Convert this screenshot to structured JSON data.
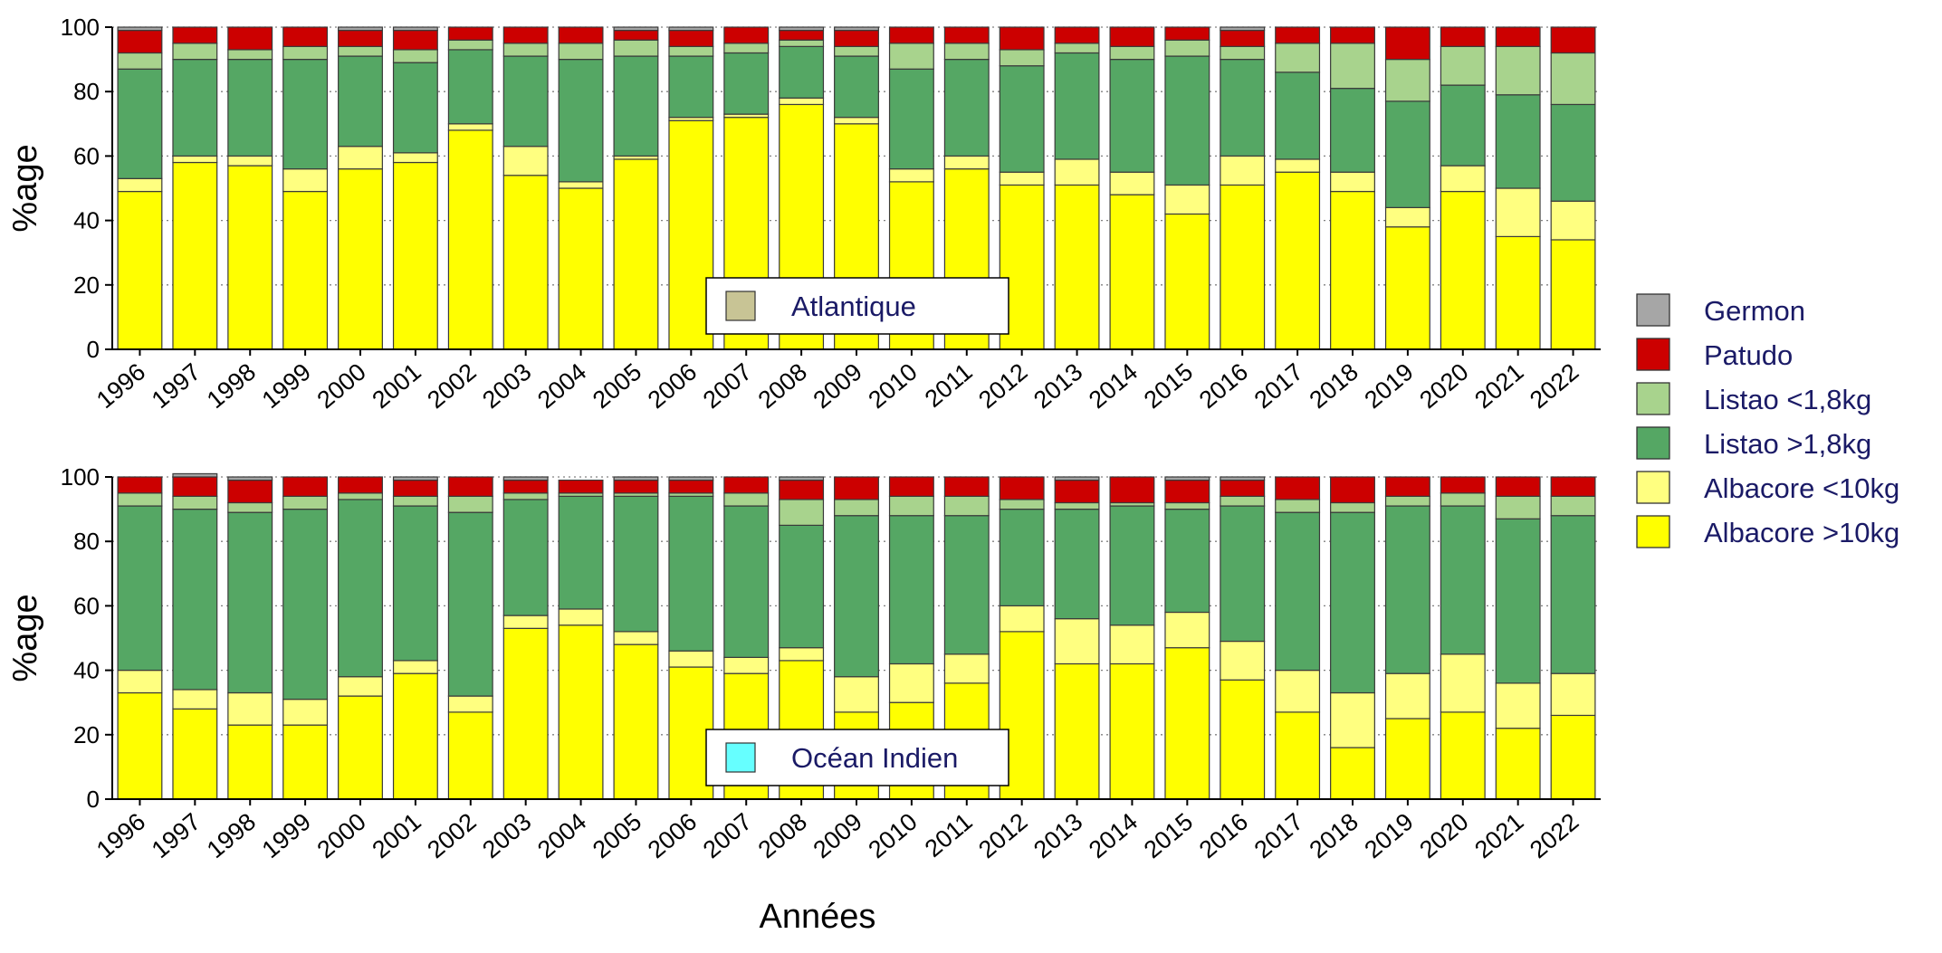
{
  "chart_data": [
    {
      "type": "bar",
      "stacked": true,
      "panel_label": "Atlantique",
      "panel_label_swatch_color": "#c8c495",
      "ylabel": "%age",
      "xlabel": "",
      "ylim": [
        0,
        100
      ],
      "y_ticks": [
        0,
        20,
        40,
        60,
        80,
        100
      ],
      "grid": true,
      "categories": [
        "1996",
        "1997",
        "1998",
        "1999",
        "2000",
        "2001",
        "2002",
        "2003",
        "2004",
        "2005",
        "2006",
        "2007",
        "2008",
        "2009",
        "2010",
        "2011",
        "2012",
        "2013",
        "2014",
        "2015",
        "2016",
        "2017",
        "2018",
        "2019",
        "2020",
        "2021",
        "2022"
      ],
      "series": [
        {
          "name": "Albacore >10kg",
          "values": [
            49,
            58,
            57,
            49,
            56,
            58,
            68,
            54,
            50,
            59,
            71,
            72,
            76,
            70,
            52,
            56,
            51,
            51,
            48,
            42,
            51,
            55,
            49,
            38,
            49,
            35,
            34
          ]
        },
        {
          "name": "Albacore <10kg",
          "values": [
            4,
            2,
            3,
            7,
            7,
            3,
            2,
            9,
            2,
            1,
            1,
            1,
            2,
            2,
            4,
            4,
            4,
            8,
            7,
            9,
            9,
            4,
            6,
            6,
            8,
            15,
            12
          ]
        },
        {
          "name": "Listao >1,8kg",
          "values": [
            34,
            30,
            30,
            34,
            28,
            28,
            23,
            28,
            38,
            31,
            19,
            19,
            16,
            19,
            31,
            30,
            33,
            33,
            35,
            40,
            30,
            27,
            26,
            33,
            25,
            29,
            30
          ]
        },
        {
          "name": "Listao <1,8kg",
          "values": [
            5,
            5,
            3,
            4,
            3,
            4,
            3,
            4,
            5,
            5,
            3,
            3,
            2,
            3,
            8,
            5,
            5,
            3,
            4,
            5,
            4,
            9,
            14,
            13,
            12,
            15,
            16
          ]
        },
        {
          "name": "Patudo",
          "values": [
            7,
            5,
            7,
            6,
            5,
            6,
            4,
            5,
            5,
            3,
            5,
            5,
            3,
            5,
            5,
            5,
            7,
            5,
            6,
            4,
            5,
            5,
            5,
            10,
            6,
            6,
            8
          ]
        },
        {
          "name": "Germon",
          "values": [
            1,
            0,
            0,
            0,
            1,
            1,
            0,
            0,
            0,
            1,
            1,
            0,
            1,
            1,
            0,
            0,
            0,
            0,
            0,
            0,
            1,
            0,
            0,
            0,
            0,
            0,
            0
          ]
        }
      ]
    },
    {
      "type": "bar",
      "stacked": true,
      "panel_label": "Océan Indien",
      "panel_label_swatch_color": "#66ffff",
      "ylabel": "%age",
      "xlabel": "Années",
      "ylim": [
        0,
        100
      ],
      "y_ticks": [
        0,
        20,
        40,
        60,
        80,
        100
      ],
      "grid": true,
      "categories": [
        "1996",
        "1997",
        "1998",
        "1999",
        "2000",
        "2001",
        "2002",
        "2003",
        "2004",
        "2005",
        "2006",
        "2007",
        "2008",
        "2009",
        "2010",
        "2011",
        "2012",
        "2013",
        "2014",
        "2015",
        "2016",
        "2017",
        "2018",
        "2019",
        "2020",
        "2021",
        "2022"
      ],
      "series": [
        {
          "name": "Albacore >10kg",
          "values": [
            33,
            28,
            23,
            23,
            32,
            39,
            27,
            53,
            54,
            48,
            41,
            39,
            43,
            27,
            30,
            36,
            52,
            42,
            42,
            47,
            37,
            27,
            16,
            25,
            27,
            22,
            26
          ]
        },
        {
          "name": "Albacore <10kg",
          "values": [
            7,
            6,
            10,
            8,
            6,
            4,
            5,
            4,
            5,
            4,
            5,
            5,
            4,
            11,
            12,
            9,
            8,
            14,
            12,
            11,
            12,
            13,
            17,
            14,
            18,
            14,
            13
          ]
        },
        {
          "name": "Listao >1,8kg",
          "values": [
            51,
            56,
            56,
            59,
            55,
            48,
            57,
            36,
            35,
            42,
            48,
            47,
            38,
            50,
            46,
            43,
            30,
            34,
            37,
            32,
            42,
            49,
            56,
            52,
            46,
            51,
            49
          ]
        },
        {
          "name": "Listao <1,8kg",
          "values": [
            4,
            4,
            3,
            4,
            2,
            3,
            5,
            2,
            1,
            1,
            1,
            4,
            8,
            5,
            6,
            6,
            3,
            2,
            1,
            2,
            3,
            4,
            3,
            3,
            4,
            7,
            6
          ]
        },
        {
          "name": "Patudo",
          "values": [
            5,
            6,
            7,
            6,
            5,
            5,
            6,
            4,
            4,
            4,
            4,
            5,
            6,
            7,
            6,
            6,
            7,
            7,
            8,
            7,
            5,
            7,
            8,
            6,
            5,
            6,
            6
          ]
        },
        {
          "name": "Germon",
          "values": [
            0,
            1,
            1,
            0,
            0,
            1,
            0,
            1,
            0,
            1,
            1,
            0,
            1,
            0,
            0,
            0,
            0,
            1,
            0,
            1,
            1,
            0,
            0,
            0,
            0,
            0,
            0
          ]
        }
      ]
    }
  ],
  "legend": {
    "placement": "right",
    "items": [
      {
        "name": "Germon",
        "color": "#a6a6a6"
      },
      {
        "name": "Patudo",
        "color": "#cc0000"
      },
      {
        "name": "Listao <1,8kg",
        "color": "#a8d38d"
      },
      {
        "name": "Listao >1,8kg",
        "color": "#55a764"
      },
      {
        "name": "Albacore <10kg",
        "color": "#ffff80"
      },
      {
        "name": "Albacore >10kg",
        "color": "#ffff00"
      }
    ]
  }
}
